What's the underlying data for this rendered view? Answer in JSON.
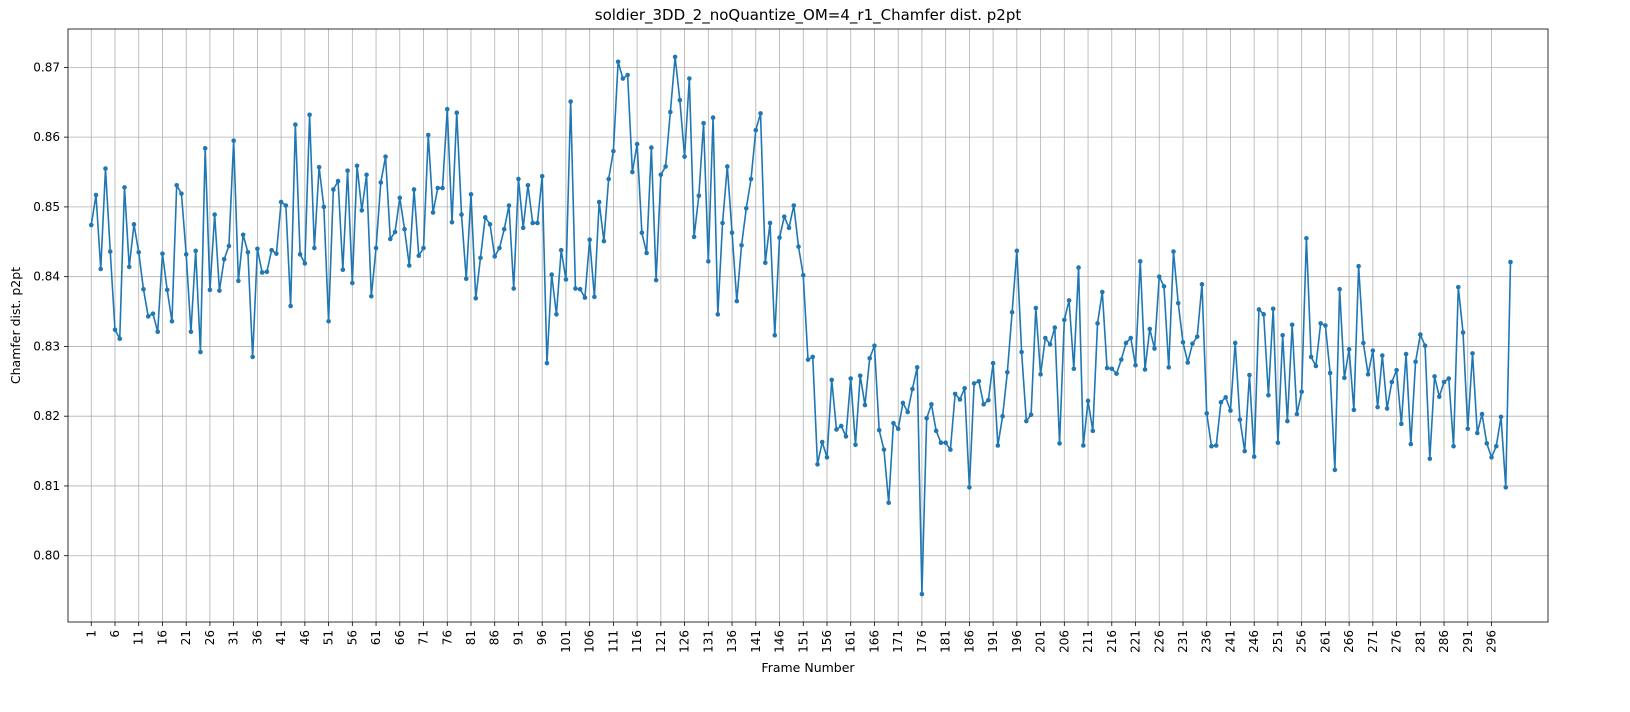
{
  "chart_data": {
    "type": "line",
    "title": "soldier_3DD_2_noQuantize_OM=4_r1_Chamfer dist. p2pt",
    "xlabel": "Frame Number",
    "ylabel": "Chamfer dist. p2pt",
    "xlim": [
      -3.9,
      307.9
    ],
    "ylim": [
      0.7905,
      0.8755
    ],
    "x_ticks": [
      1,
      6,
      11,
      16,
      21,
      26,
      31,
      36,
      41,
      46,
      51,
      56,
      61,
      66,
      71,
      76,
      81,
      86,
      91,
      96,
      101,
      106,
      111,
      116,
      121,
      126,
      131,
      136,
      141,
      146,
      151,
      156,
      161,
      166,
      171,
      176,
      181,
      186,
      191,
      196,
      201,
      206,
      211,
      216,
      221,
      226,
      231,
      236,
      241,
      246,
      251,
      256,
      261,
      266,
      271,
      276,
      281,
      286,
      291,
      296
    ],
    "y_ticks": [
      0.8,
      0.81,
      0.82,
      0.83,
      0.84,
      0.85,
      0.86,
      0.87
    ],
    "y_tick_labels": [
      "0.80",
      "0.81",
      "0.82",
      "0.83",
      "0.84",
      "0.85",
      "0.86",
      "0.87"
    ],
    "grid": true,
    "color": "#1f77b4",
    "x_start": 1,
    "values": [
      0.8474,
      0.8517,
      0.8411,
      0.8555,
      0.8436,
      0.8324,
      0.8311,
      0.8528,
      0.8414,
      0.8475,
      0.8435,
      0.8382,
      0.8343,
      0.8347,
      0.8321,
      0.8433,
      0.8381,
      0.8336,
      0.8531,
      0.8519,
      0.8432,
      0.8321,
      0.8437,
      0.8292,
      0.8584,
      0.8381,
      0.8489,
      0.838,
      0.8425,
      0.8444,
      0.8595,
      0.8394,
      0.846,
      0.8435,
      0.8285,
      0.844,
      0.8406,
      0.8407,
      0.8438,
      0.8433,
      0.8507,
      0.8502,
      0.8358,
      0.8618,
      0.8432,
      0.8419,
      0.8632,
      0.8441,
      0.8557,
      0.85,
      0.8336,
      0.8525,
      0.8537,
      0.841,
      0.8552,
      0.8391,
      0.8559,
      0.8495,
      0.8546,
      0.8372,
      0.8441,
      0.8535,
      0.8572,
      0.8454,
      0.8464,
      0.8513,
      0.8468,
      0.8416,
      0.8525,
      0.843,
      0.8441,
      0.8603,
      0.8492,
      0.8527,
      0.8527,
      0.864,
      0.8478,
      0.8635,
      0.8489,
      0.8397,
      0.8518,
      0.8369,
      0.8427,
      0.8485,
      0.8475,
      0.8429,
      0.8441,
      0.8468,
      0.8502,
      0.8383,
      0.854,
      0.847,
      0.8531,
      0.8477,
      0.8477,
      0.8544,
      0.8276,
      0.8403,
      0.8346,
      0.8438,
      0.8396,
      0.8651,
      0.8383,
      0.8382,
      0.837,
      0.8453,
      0.8371,
      0.8507,
      0.8451,
      0.854,
      0.858,
      0.8708,
      0.8684,
      0.8689,
      0.855,
      0.859,
      0.8463,
      0.8434,
      0.8585,
      0.8395,
      0.8546,
      0.8558,
      0.8636,
      0.8715,
      0.8653,
      0.8572,
      0.8684,
      0.8457,
      0.8516,
      0.862,
      0.8422,
      0.8628,
      0.8346,
      0.8477,
      0.8558,
      0.8463,
      0.8365,
      0.8445,
      0.8498,
      0.854,
      0.861,
      0.8634,
      0.842,
      0.8477,
      0.8316,
      0.8456,
      0.8486,
      0.847,
      0.8502,
      0.8443,
      0.8402,
      0.8281,
      0.8285,
      0.8131,
      0.8163,
      0.8141,
      0.8252,
      0.8181,
      0.8186,
      0.8171,
      0.8254,
      0.8159,
      0.8258,
      0.8216,
      0.8283,
      0.8301,
      0.818,
      0.8152,
      0.8076,
      0.819,
      0.8182,
      0.8219,
      0.8206,
      0.8239,
      0.827,
      0.7945,
      0.8197,
      0.8217,
      0.8179,
      0.8162,
      0.8162,
      0.8152,
      0.8232,
      0.8224,
      0.824,
      0.8098,
      0.8247,
      0.825,
      0.8217,
      0.8223,
      0.8276,
      0.8158,
      0.82,
      0.8263,
      0.8349,
      0.8437,
      0.8292,
      0.8193,
      0.8202,
      0.8355,
      0.826,
      0.8312,
      0.8303,
      0.8327,
      0.8161,
      0.8338,
      0.8366,
      0.8268,
      0.8413,
      0.8158,
      0.8222,
      0.8179,
      0.8333,
      0.8378,
      0.8269,
      0.8268,
      0.8261,
      0.8281,
      0.8305,
      0.8312,
      0.8273,
      0.8422,
      0.8267,
      0.8325,
      0.8297,
      0.84,
      0.8386,
      0.827,
      0.8436,
      0.8362,
      0.8306,
      0.8277,
      0.8304,
      0.8314,
      0.8389,
      0.8204,
      0.8157,
      0.8158,
      0.822,
      0.8227,
      0.8208,
      0.8305,
      0.8195,
      0.815,
      0.8259,
      0.8142,
      0.8353,
      0.8346,
      0.823,
      0.8354,
      0.8162,
      0.8316,
      0.8193,
      0.8331,
      0.8203,
      0.8235,
      0.8455,
      0.8285,
      0.8272,
      0.8333,
      0.833,
      0.8262,
      0.8123,
      0.8382,
      0.8255,
      0.8296,
      0.8209,
      0.8415,
      0.8305,
      0.826,
      0.8294,
      0.8213,
      0.8287,
      0.8211,
      0.8249,
      0.8266,
      0.8189,
      0.8289,
      0.816,
      0.8278,
      0.8317,
      0.8301,
      0.8139,
      0.8257,
      0.8228,
      0.8249,
      0.8254,
      0.8157,
      0.8385,
      0.832,
      0.8182,
      0.829,
      0.8176,
      0.8203,
      0.8161,
      0.8141,
      0.8157,
      0.8199,
      0.8098,
      0.8421
    ]
  }
}
